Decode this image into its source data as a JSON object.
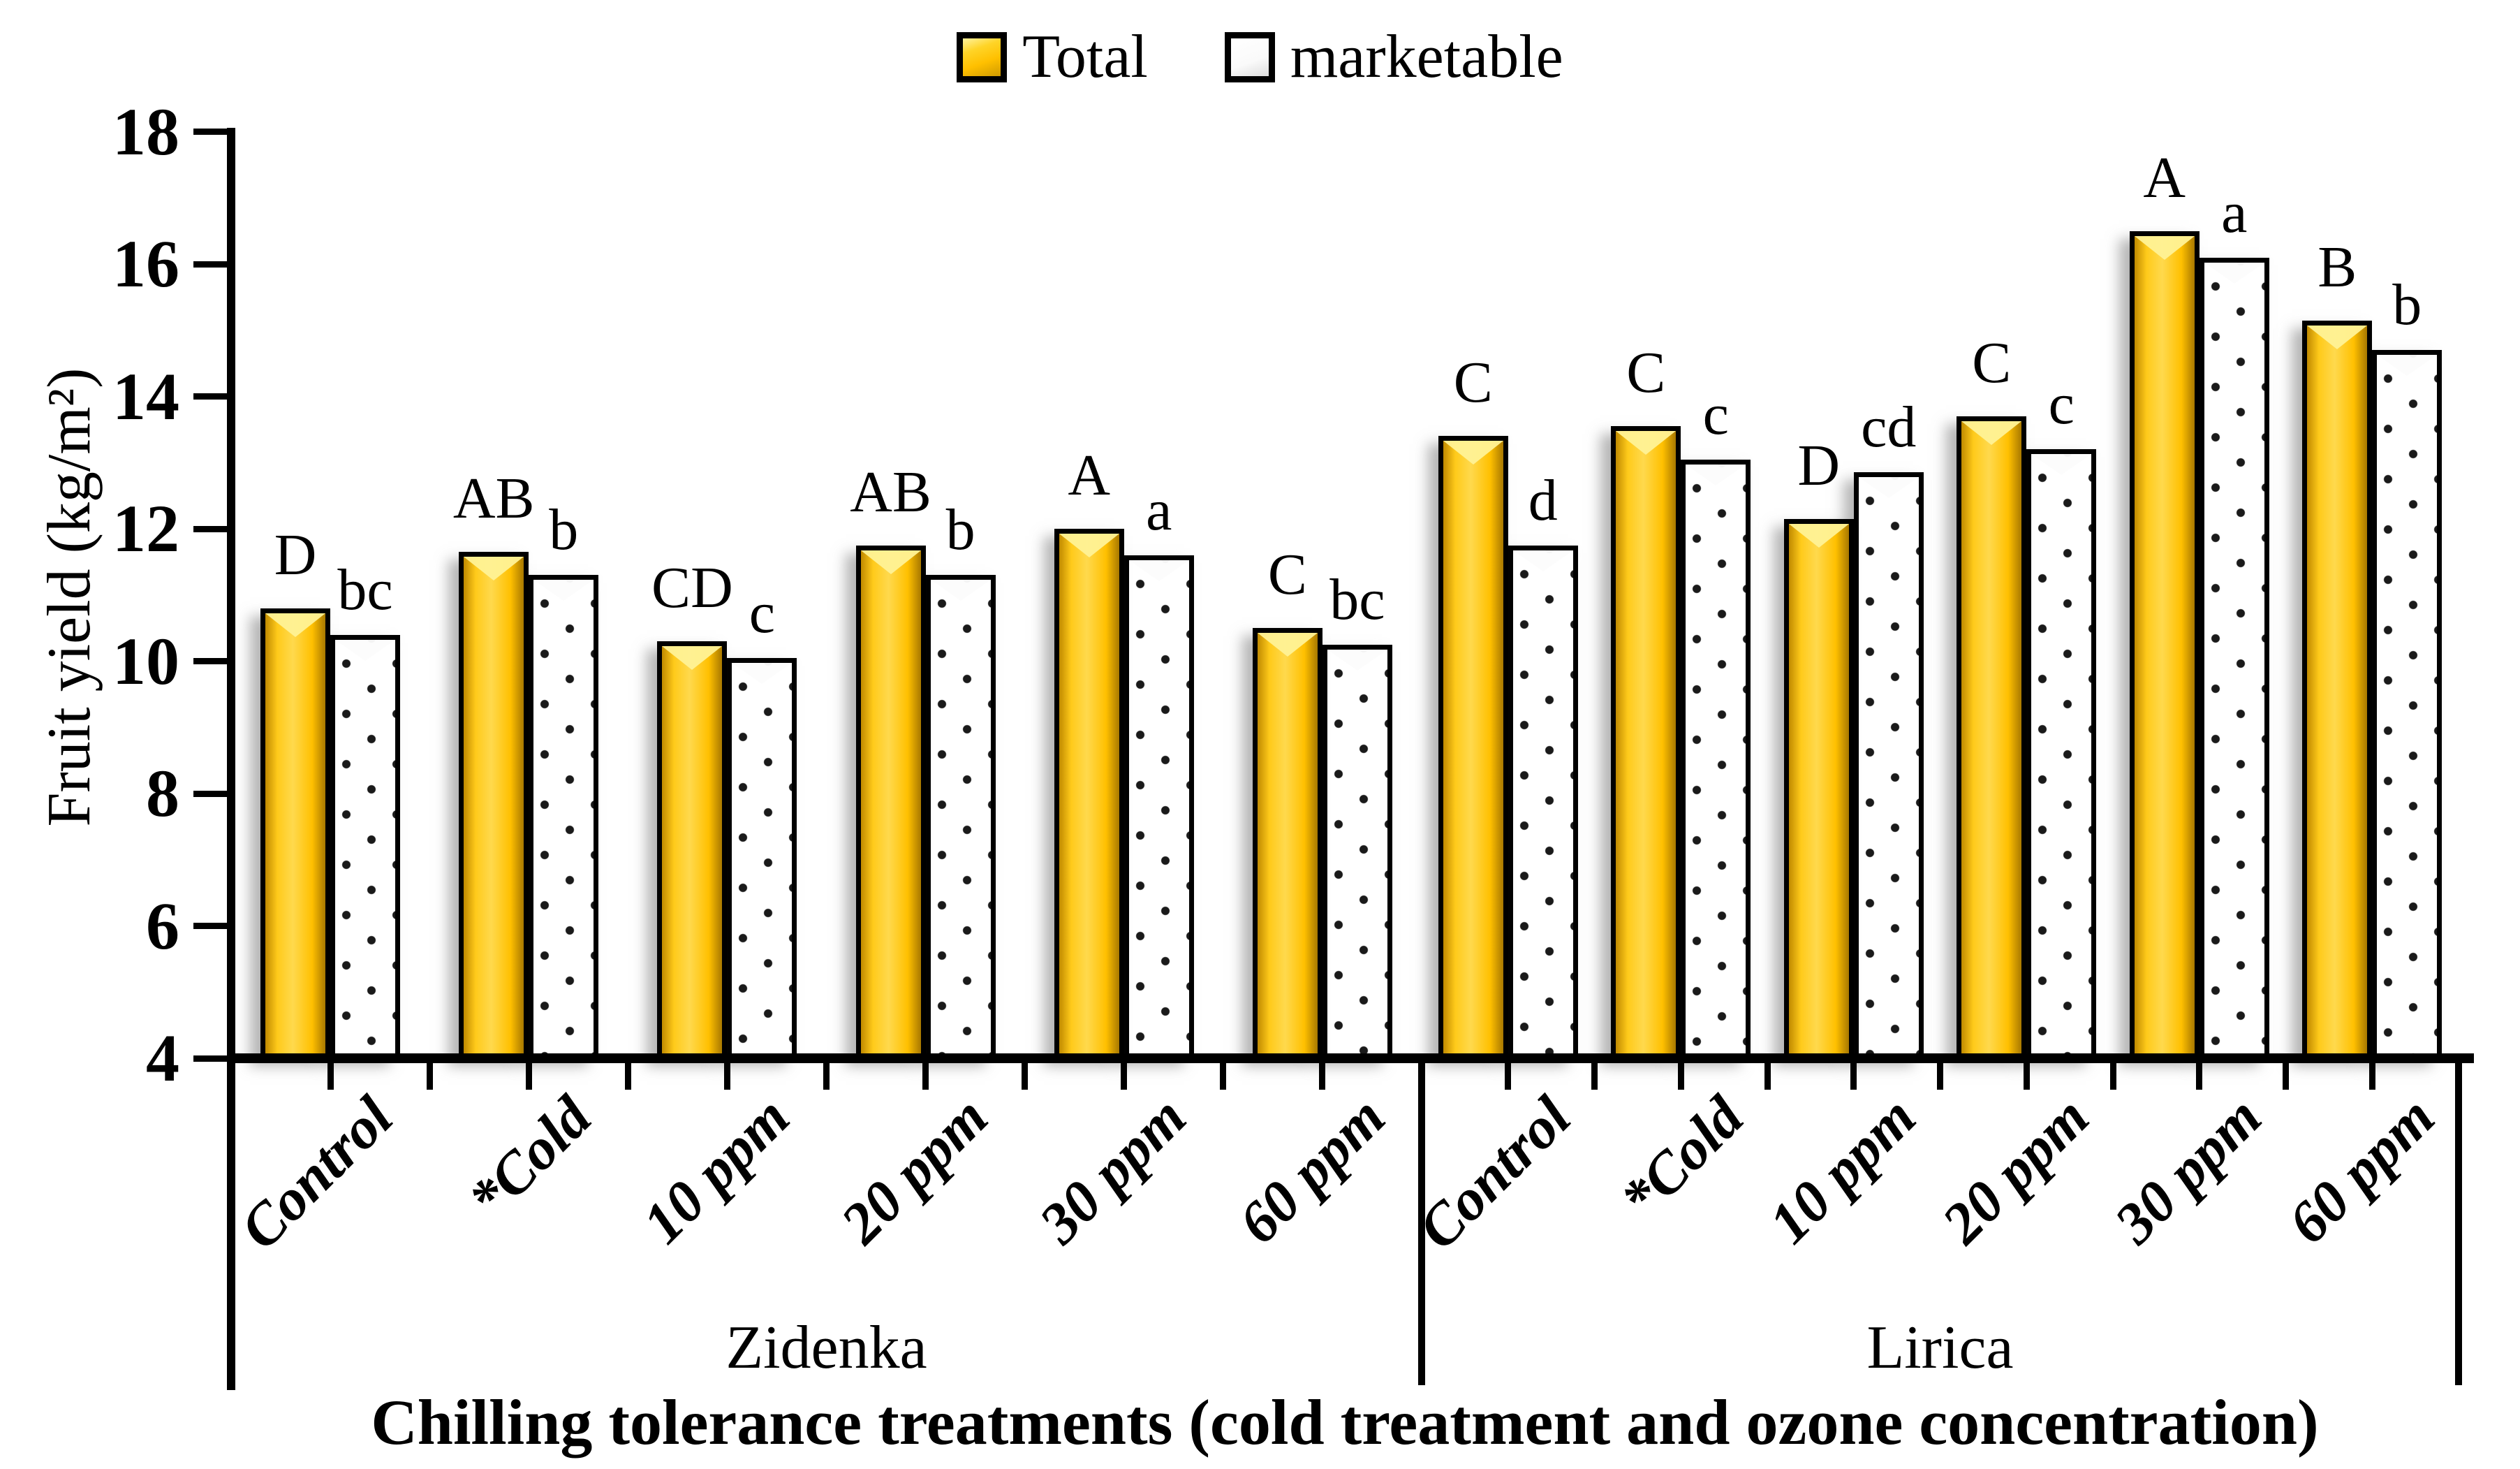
{
  "chart_data": {
    "type": "bar",
    "title": "",
    "ylabel": "Fruit yield (kg/m²)",
    "xlabel": "Chilling tolerance treatments (cold treatment and ozone concentration)",
    "ylim": [
      4,
      18
    ],
    "yticks": [
      "4",
      "6",
      "8",
      "10",
      "12",
      "14",
      "16",
      "18"
    ],
    "grid": "off",
    "legend_position": "top-center",
    "legend": [
      "Total",
      "marketable"
    ],
    "colors": {
      "total": "#FFC000",
      "marketable": "#FFFFFF",
      "border": "#000000"
    },
    "groups": [
      {
        "name": "Zidenka",
        "categories": [
          "Control",
          "*Cold",
          "10 ppm",
          "20 ppm",
          "30 ppm",
          "60 ppm"
        ],
        "series": [
          {
            "name": "Total",
            "values": [
              10.8,
              11.65,
              10.3,
              11.75,
              12.0,
              10.5
            ],
            "letters": [
              "D",
              "AB",
              "CD",
              "AB",
              "A",
              "C"
            ]
          },
          {
            "name": "marketable",
            "values": [
              10.4,
              11.3,
              10.05,
              11.3,
              11.6,
              10.25
            ],
            "letters": [
              "bc",
              "b",
              "c",
              "b",
              "a",
              "bc"
            ]
          }
        ]
      },
      {
        "name": "Lirica",
        "categories": [
          "Control",
          "*Cold",
          "10 ppm",
          "20 ppm",
          "30 ppm",
          "60 ppm"
        ],
        "series": [
          {
            "name": "Total",
            "values": [
              13.4,
              13.55,
              12.15,
              13.7,
              16.5,
              15.15
            ],
            "letters": [
              "C",
              "C",
              "D",
              "C",
              "A",
              "B"
            ]
          },
          {
            "name": "marketable",
            "values": [
              11.75,
              13.05,
              12.85,
              13.2,
              16.1,
              14.7
            ],
            "letters": [
              "d",
              "c",
              "cd",
              "c",
              "a",
              "b"
            ]
          }
        ]
      }
    ]
  }
}
